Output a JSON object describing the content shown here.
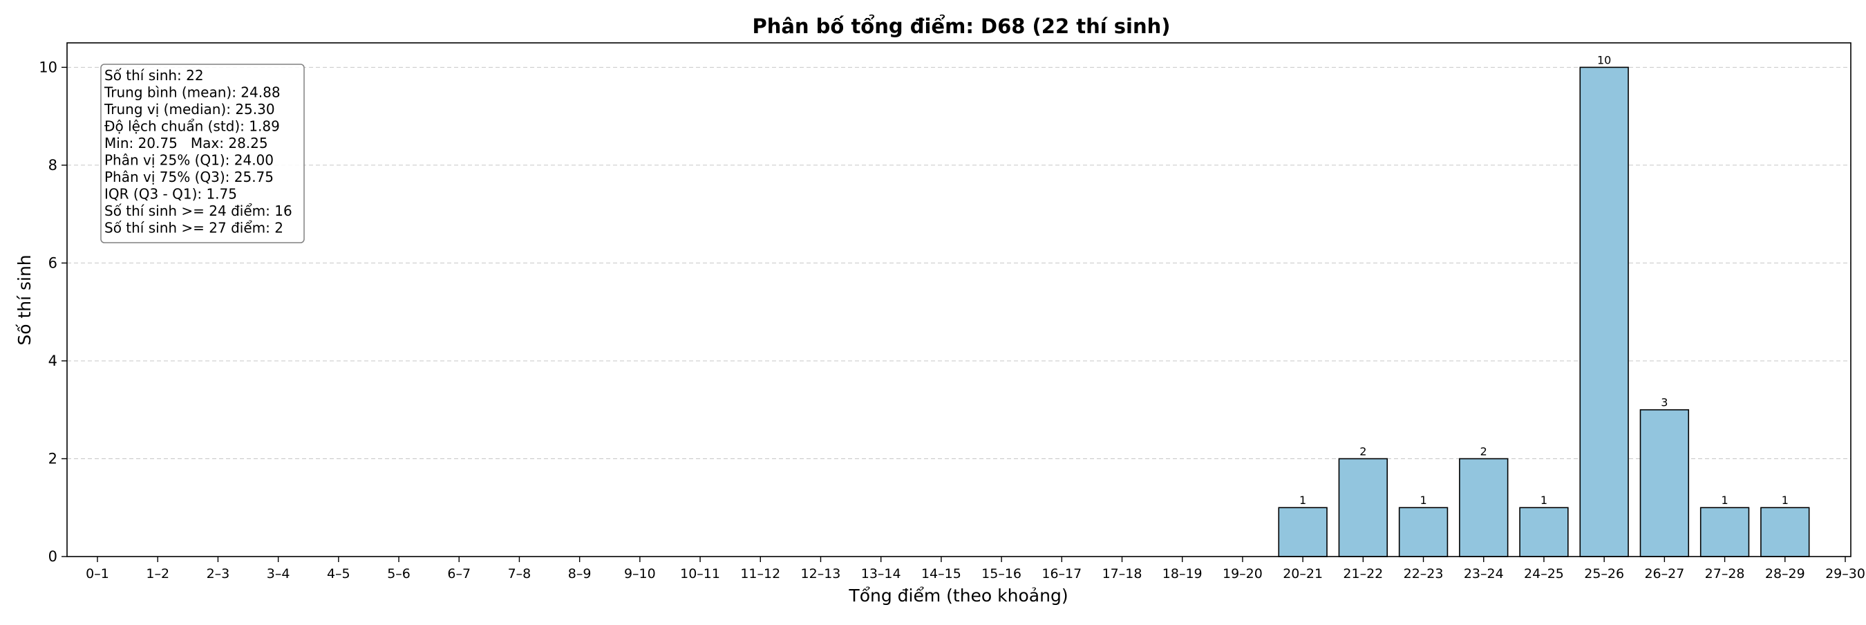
{
  "chart_data": {
    "type": "bar",
    "title": "Phân bố tổng điểm: D68 (22 thí sinh)",
    "xlabel": "Tổng điểm (theo khoảng)",
    "ylabel": "Số thí sinh",
    "categories": [
      "0–1",
      "1–2",
      "2–3",
      "3–4",
      "4–5",
      "5–6",
      "6–7",
      "7–8",
      "8–9",
      "9–10",
      "10–11",
      "11–12",
      "12–13",
      "13–14",
      "14–15",
      "15–16",
      "16–17",
      "17–18",
      "18–19",
      "19–20",
      "20–21",
      "21–22",
      "22–23",
      "23–24",
      "24–25",
      "25–26",
      "26–27",
      "27–28",
      "28–29",
      "29–30"
    ],
    "values": [
      0,
      0,
      0,
      0,
      0,
      0,
      0,
      0,
      0,
      0,
      0,
      0,
      0,
      0,
      0,
      0,
      0,
      0,
      0,
      0,
      1,
      2,
      1,
      2,
      1,
      10,
      3,
      1,
      1,
      0
    ],
    "ylim": [
      0,
      10.5
    ],
    "yticks": [
      0,
      2,
      4,
      6,
      8,
      10
    ],
    "grid": "y, dashed",
    "bar_color": "#92c5de",
    "bar_edge_color": "#000000",
    "stats_box": {
      "placement": "top-left",
      "lines": [
        "Số thí sinh: 22",
        "Trung bình (mean): 24.88",
        "Trung vị (median): 25.30",
        "Độ lệch chuẩn (std): 1.89",
        "Min: 20.75   Max: 28.25",
        "Phân vị 25% (Q1): 24.00",
        "Phân vị 75% (Q3): 25.75",
        "IQR (Q3 - Q1): 1.75",
        "Số thí sinh >= 24 điểm: 16",
        "Số thí sinh >= 27 điểm: 2"
      ]
    }
  }
}
